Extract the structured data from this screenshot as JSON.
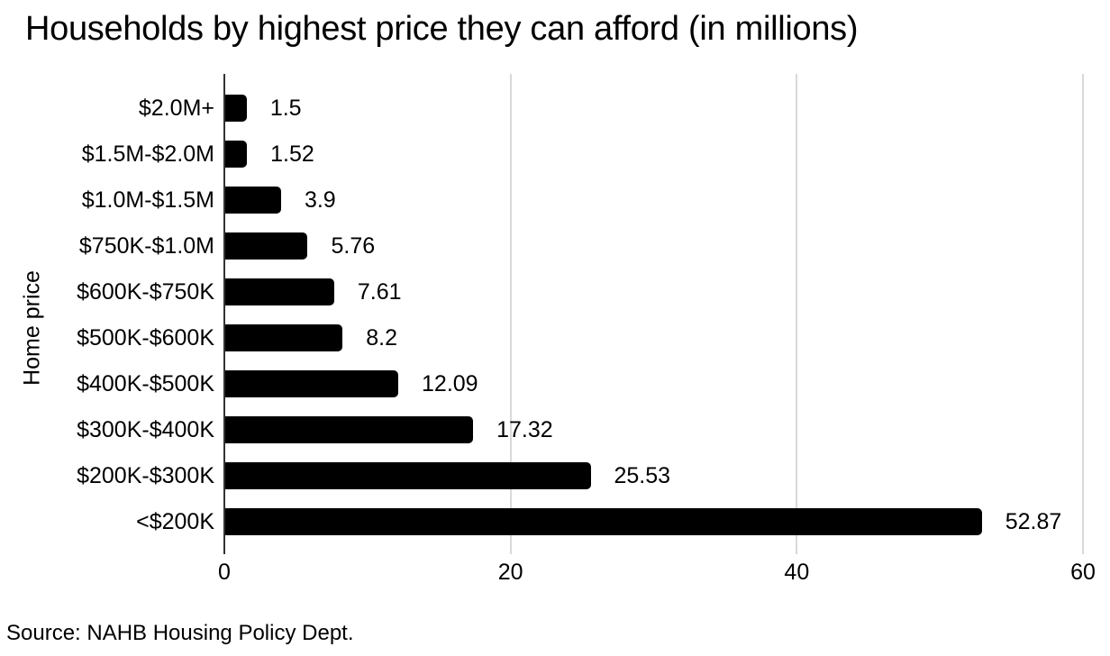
{
  "title": "Households by highest price they can afford (in millions)",
  "source": "Source: NAHB Housing Policy Dept.",
  "chart_data": {
    "type": "bar",
    "orientation": "horizontal",
    "title": "Households by highest price they can afford (in millions)",
    "categories": [
      "$2.0M+",
      "$1.5M-$2.0M",
      "$1.0M-$1.5M",
      "$750K-$1.0M",
      "$600K-$750K",
      "$500K-$600K",
      "$400K-$500K",
      "$300K-$400K",
      "$200K-$300K",
      "<$200K"
    ],
    "values": [
      1.5,
      1.52,
      3.9,
      5.76,
      7.61,
      8.2,
      12.09,
      17.32,
      25.53,
      52.87
    ],
    "value_labels": [
      "1.5",
      "1.52",
      "3.9",
      "5.76",
      "7.61",
      "8.2",
      "12.09",
      "17.32",
      "25.53",
      "52.87"
    ],
    "xlabel": "",
    "ylabel": "Home price",
    "xlim": [
      0,
      60
    ],
    "x_ticks": [
      0,
      20,
      40,
      60
    ],
    "grid": true,
    "legend": "none",
    "bar_color": "#000000",
    "gridline_color": "#d9d9d9",
    "axis_line_color": "#333333",
    "text_color": "#000000"
  }
}
